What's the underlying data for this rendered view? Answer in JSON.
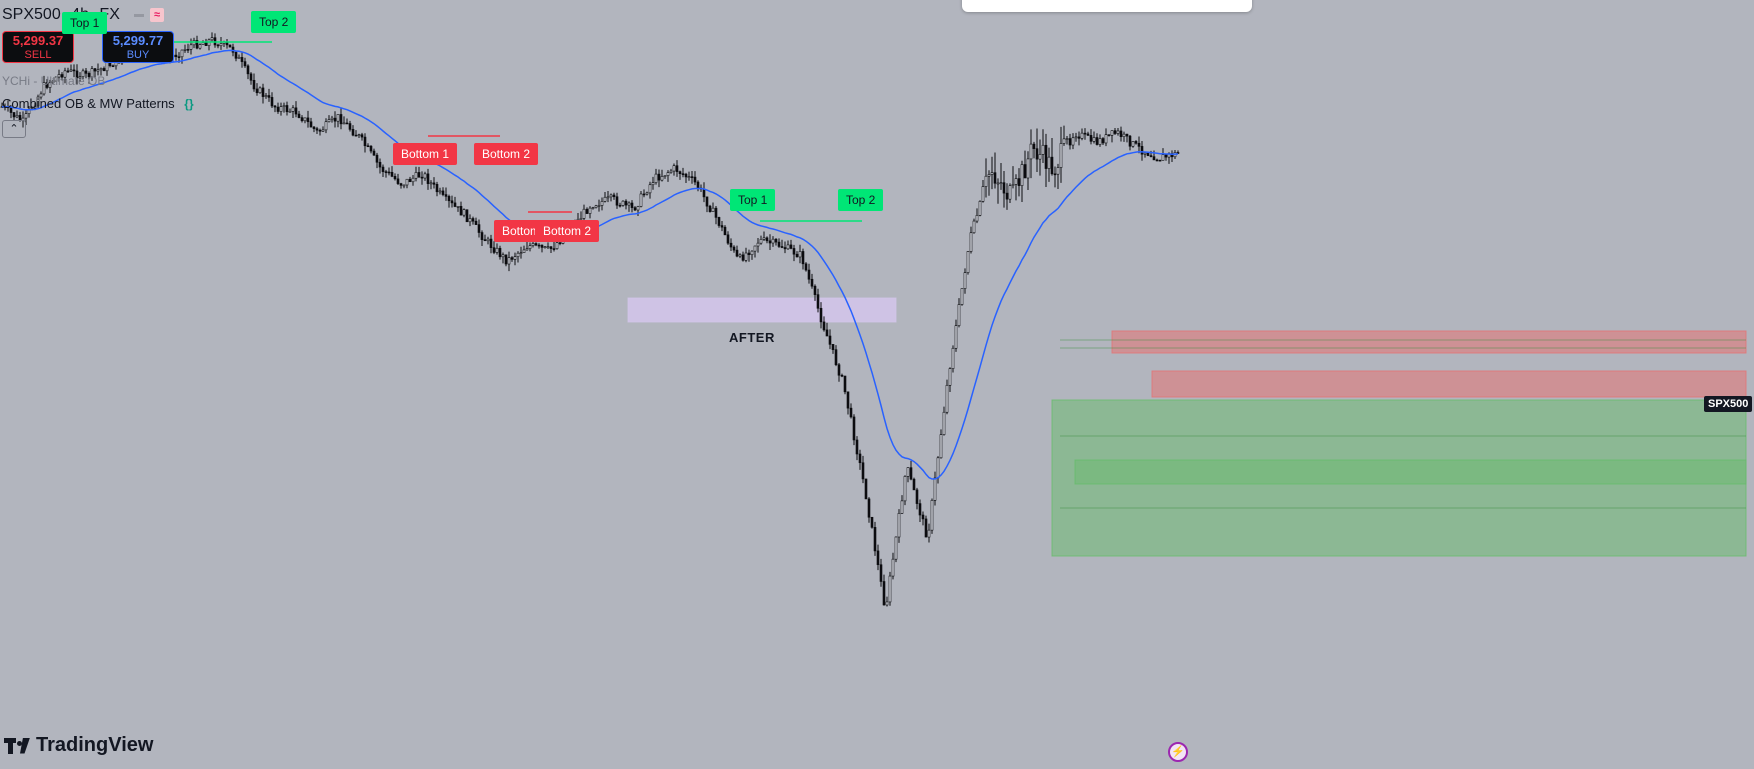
{
  "header": {
    "symbol": "SPX500",
    "timeframe": "4h",
    "source": "FX"
  },
  "quotes": {
    "sell_price": "5,299.37",
    "sell_label": "SELL",
    "buy_price": "5,299.77",
    "buy_label": "BUY"
  },
  "indicators": {
    "line1": "YCHi - Ultimate OB",
    "line2": "Combined OB & MW Patterns"
  },
  "patterns": {
    "top1_a": "Top 1",
    "top2_a": "Top 2",
    "bottom1_a": "Bottom 1",
    "bottom2_a": "Bottom 2",
    "bottom1_b": "Bottom 1",
    "bottom2_b": "Bottom 2",
    "top1_b": "Top 1",
    "top2_b": "Top 2"
  },
  "annotation": {
    "after": "AFTER"
  },
  "price_scale": {
    "symbol_tag": "SPX500"
  },
  "branding": {
    "logo_text": "TradingView"
  },
  "colors": {
    "background": "#b2b5be",
    "candle": "#0c0d10",
    "ema": "#2962ff",
    "tag_green": "#00e676",
    "tag_red": "#f23645",
    "zone_red": "#e57373",
    "zone_green": "#66bb6a",
    "zone_after": "#d1c4e9"
  },
  "icons": {
    "code": "code-icon",
    "collapse": "chevron-up-icon",
    "bolt": "lightning-icon"
  },
  "chart_data": {
    "type": "candlestick",
    "title": "",
    "series": [
      {
        "name": "price_path",
        "values": [
          5270,
          5255,
          5290,
          5305,
          5300,
          5310,
          5320,
          5322,
          5318,
          5330,
          5335,
          5325,
          5290,
          5270,
          5265,
          5245,
          5260,
          5240,
          5210,
          5195,
          5205,
          5180,
          5165,
          5140,
          5120,
          5135,
          5130,
          5150,
          5175,
          5180,
          5170,
          5200,
          5210,
          5195,
          5160,
          5120,
          5140,
          5135,
          5125,
          5060,
          5000,
          4900,
          4780,
          4920,
          4850,
          5010,
          5140,
          5210,
          5180,
          5230,
          5210,
          5245,
          5235,
          5245,
          5230,
          5220,
          5225
        ]
      }
    ]
  }
}
